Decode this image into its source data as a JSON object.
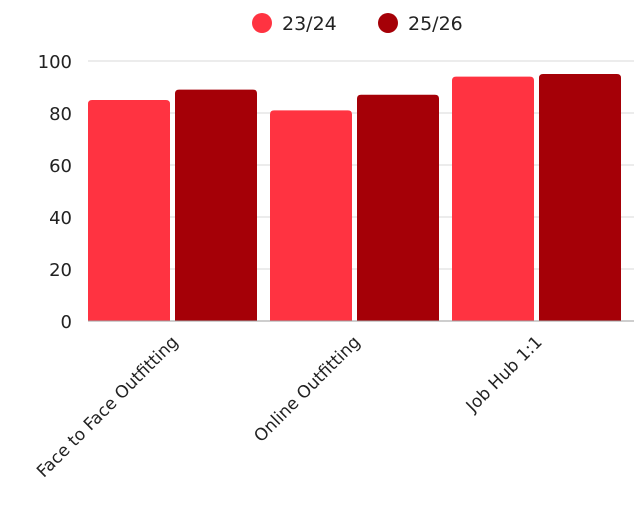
{
  "chart_data": {
    "type": "bar",
    "title": "",
    "xlabel": "",
    "ylabel": "",
    "categories": [
      "Face to Face Outfitting",
      "Online Outfitting",
      "Job Hub 1:1"
    ],
    "series": [
      {
        "name": "23/24",
        "color": "#ff3341",
        "values": [
          85,
          81,
          94
        ]
      },
      {
        "name": "25/26",
        "color": "#a50007",
        "values": [
          89,
          87,
          95
        ]
      }
    ],
    "ylim": [
      0,
      100
    ],
    "yticks": [
      "0",
      "20",
      "40",
      "60",
      "80",
      "100"
    ],
    "grid": true,
    "legend_position": "top-center"
  }
}
